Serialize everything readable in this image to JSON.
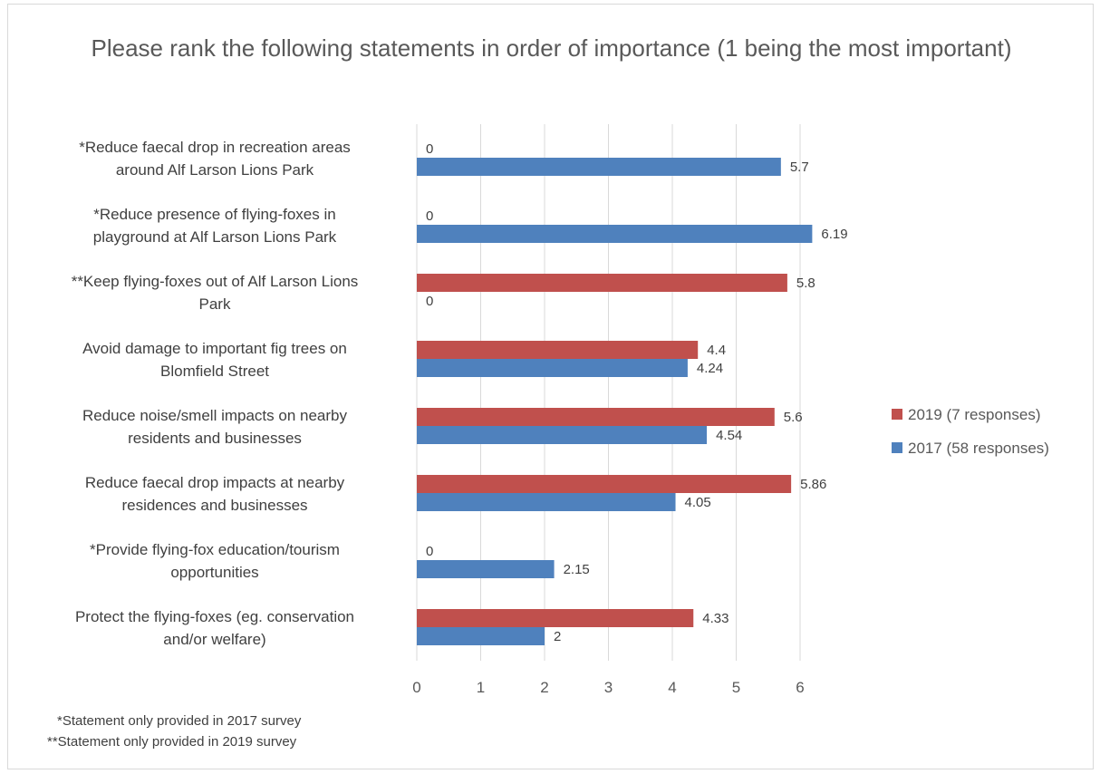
{
  "chart_data": {
    "type": "bar",
    "orientation": "horizontal",
    "title": "Please rank the following statements in order of importance (1 being the most important)",
    "categories": [
      "*Reduce faecal drop in recreation areas around Alf Larson Lions Park",
      "*Reduce presence of flying-foxes in playground at Alf Larson Lions Park",
      "**Keep flying-foxes out of Alf Larson Lions Park",
      "Avoid damage to important fig trees on Blomfield Street",
      "Reduce noise/smell impacts on nearby residents and businesses",
      "Reduce faecal drop impacts at nearby residences and businesses",
      "*Provide flying-fox education/tourism opportunities",
      "Protect the flying-foxes (eg. conservation and/or welfare)"
    ],
    "category_lines": [
      [
        "*Reduce faecal drop in recreation areas",
        "around Alf Larson Lions Park"
      ],
      [
        "*Reduce presence of flying-foxes in",
        "playground at Alf Larson Lions Park"
      ],
      [
        "**Keep flying-foxes out of Alf Larson Lions",
        "Park"
      ],
      [
        "Avoid damage to important fig trees on",
        "Blomfield Street"
      ],
      [
        "Reduce noise/smell impacts on nearby",
        "residents and businesses"
      ],
      [
        "Reduce faecal drop impacts at nearby",
        "residences and businesses"
      ],
      [
        "*Provide flying-fox education/tourism",
        "opportunities"
      ],
      [
        "Protect the flying-foxes (eg. conservation",
        "and/or welfare)"
      ]
    ],
    "series": [
      {
        "name": "2019 (7 responses)",
        "color": "#c0504d",
        "values": [
          0,
          0,
          5.8,
          4.4,
          5.6,
          5.86,
          0,
          4.33
        ],
        "labels": [
          "0",
          "0",
          "5.8",
          "4.4",
          "5.6",
          "5.86",
          "0",
          "4.33"
        ]
      },
      {
        "name": "2017 (58 responses)",
        "color": "#4f81bd",
        "values": [
          5.7,
          6.19,
          0,
          4.24,
          4.54,
          4.05,
          2.15,
          2
        ],
        "labels": [
          "5.7",
          "6.19",
          "0",
          "4.24",
          "4.54",
          "4.05",
          "2.15",
          "2"
        ]
      }
    ],
    "xlim": [
      0,
      7
    ],
    "xticks": [
      "0",
      "1",
      "2",
      "3",
      "4",
      "5",
      "6"
    ],
    "grid": true,
    "legend_position": "right"
  },
  "footnotes": [
    "*Statement only provided in 2017 survey",
    "**Statement only provided in 2019 survey"
  ]
}
